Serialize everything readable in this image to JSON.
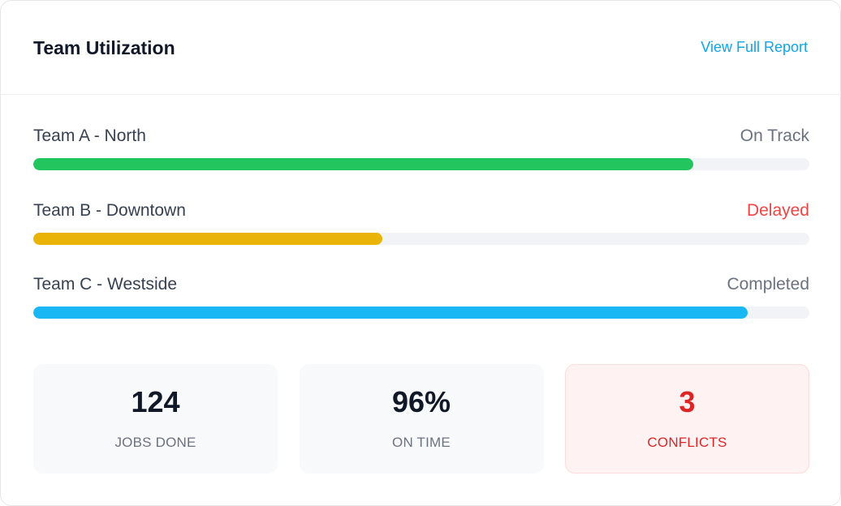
{
  "header": {
    "title": "Team Utilization",
    "link_label": "View Full Report"
  },
  "teams": [
    {
      "name": "Team A - North",
      "status": "On Track",
      "progress": 0.85,
      "bar_color": "#22c55e",
      "status_color": "#6b7280"
    },
    {
      "name": "Team B - Downtown",
      "status": "Delayed",
      "progress": 0.45,
      "bar_color": "#eab308",
      "status_color": "#ef4444"
    },
    {
      "name": "Team C - Westside",
      "status": "Completed",
      "progress": 0.92,
      "bar_color": "#1ab7f5",
      "status_color": "#6b7280"
    }
  ],
  "stats": [
    {
      "value": "124",
      "label": "JOBS DONE"
    },
    {
      "value": "96%",
      "label": "ON TIME"
    },
    {
      "value": "3",
      "label": "CONFLICTS"
    }
  ],
  "colors": {
    "accent": "#0ea5e9",
    "danger": "#dc2626",
    "track": "#f1f3f6"
  }
}
